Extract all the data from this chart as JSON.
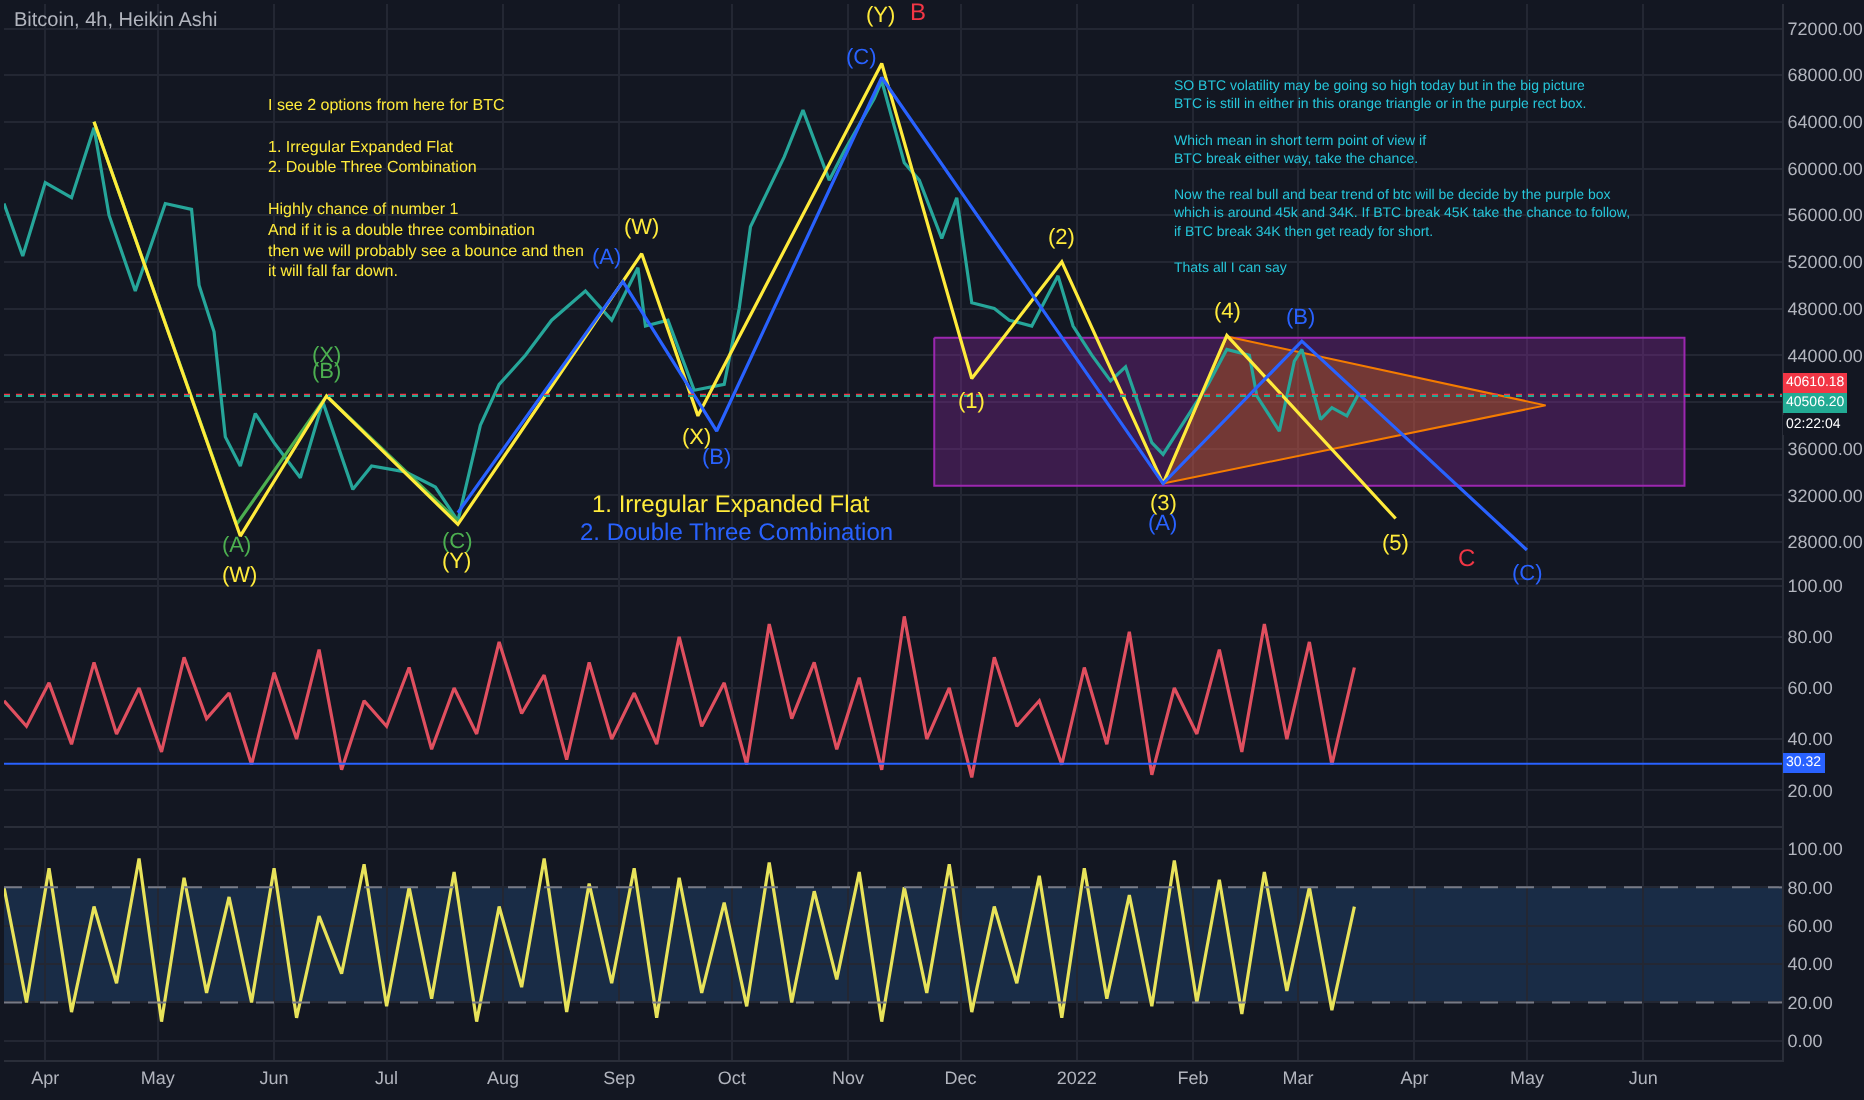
{
  "chart_data": [
    {
      "type": "line",
      "title": "Bitcoin, 4h, Heikin Ashi",
      "xlim": [
        "2021-03-21",
        "2022-07-08"
      ],
      "ylim": [
        24900,
        74100
      ],
      "yticks": [
        {
          "value": 28000,
          "label": "28000.00"
        },
        {
          "value": 32000,
          "label": "32000.00"
        },
        {
          "value": 36000,
          "label": "36000.00"
        },
        {
          "value": 40000,
          "label": null
        },
        {
          "value": 44000,
          "label": "44000.00"
        },
        {
          "value": 48000,
          "label": "48000.00"
        },
        {
          "value": 52000,
          "label": "52000.00"
        },
        {
          "value": 56000,
          "label": "56000.00"
        },
        {
          "value": 60000,
          "label": "60000.00"
        },
        {
          "value": 64000,
          "label": "64000.00"
        },
        {
          "value": 68000,
          "label": "68000.00"
        },
        {
          "value": 72000,
          "label": "72000.00"
        }
      ],
      "tick_labels": "y",
      "grid": true,
      "series": [
        {
          "type": "area",
          "color": "#9c27b0",
          "x": [
            "2021-11-24",
            "2022-06-12",
            "2022-06-12",
            "2021-11-24",
            "2021-11-24"
          ],
          "values": [
            45500,
            45500,
            32800,
            32800,
            45500
          ]
        },
        {
          "type": "area",
          "color": "#f57c00",
          "x": [
            "2022-01-24",
            "2022-02-10",
            "2022-05-06",
            "2022-01-24"
          ],
          "values": [
            33000,
            45600,
            39700,
            33000
          ]
        },
        {
          "color": "#26a69a",
          "x": [
            "2021-03-21",
            "2021-03-26",
            "2021-04-01",
            "2021-04-08",
            "2021-04-14",
            "2021-04-18",
            "2021-04-25",
            "2021-05-03",
            "2021-05-10",
            "2021-05-12",
            "2021-05-16",
            "2021-05-19",
            "2021-05-23",
            "2021-05-27",
            "2021-06-01",
            "2021-06-08",
            "2021-06-14",
            "2021-06-22",
            "2021-06-27",
            "2021-07-06",
            "2021-07-14",
            "2021-07-20",
            "2021-07-26",
            "2021-07-31",
            "2021-08-07",
            "2021-08-14",
            "2021-08-23",
            "2021-08-30",
            "2021-09-06",
            "2021-09-08",
            "2021-09-14",
            "2021-09-21",
            "2021-09-29",
            "2021-10-03",
            "2021-10-06",
            "2021-10-15",
            "2021-10-20",
            "2021-10-27",
            "2021-10-31",
            "2021-11-08",
            "2021-11-10",
            "2021-11-16",
            "2021-11-20",
            "2021-11-26",
            "2021-11-30",
            "2021-12-04",
            "2021-12-10",
            "2021-12-14",
            "2021-12-20",
            "2021-12-27",
            "2021-12-31",
            "2022-01-05",
            "2022-01-10",
            "2022-01-14",
            "2022-01-21",
            "2022-01-24",
            "2022-01-29",
            "2022-02-05",
            "2022-02-10",
            "2022-02-16",
            "2022-02-18",
            "2022-02-24",
            "2022-02-28",
            "2022-03-02",
            "2022-03-07",
            "2022-03-10",
            "2022-03-14",
            "2022-03-17"
          ],
          "values": [
            57000,
            52500,
            58800,
            57500,
            63500,
            56000,
            49500,
            57000,
            56500,
            50000,
            46000,
            37000,
            34500,
            39000,
            36500,
            33500,
            40000,
            32500,
            34500,
            34000,
            32700,
            29800,
            38000,
            41500,
            44000,
            47000,
            49500,
            47000,
            51500,
            46500,
            47000,
            41000,
            41500,
            48000,
            55000,
            61000,
            65000,
            59000,
            61500,
            66000,
            67500,
            60500,
            59000,
            54000,
            57500,
            48500,
            48000,
            47000,
            46500,
            50800,
            46500,
            44000,
            41800,
            43000,
            36500,
            35500,
            38000,
            41500,
            44500,
            44000,
            40500,
            37500,
            43500,
            44500,
            38500,
            39500,
            38800,
            40600
          ]
        },
        {
          "color": "#4caf50",
          "x": [
            "2021-04-14",
            "2021-05-22",
            "2021-06-15",
            "2021-07-20"
          ],
          "values": [
            64000,
            29500,
            40500,
            29800
          ]
        },
        {
          "color": "#ffeb3b",
          "x": [
            "2021-04-14",
            "2021-05-23",
            "2021-06-15",
            "2021-07-20",
            "2021-09-07",
            "2021-09-22",
            "2021-11-10",
            "2021-12-04",
            "2021-12-28",
            "2022-01-24",
            "2022-02-10",
            "2022-03-27"
          ],
          "values": [
            64000,
            28500,
            40500,
            29500,
            52700,
            38800,
            69000,
            42000,
            52000,
            33000,
            45700,
            30000
          ]
        },
        {
          "color": "#2962ff",
          "x": [
            "2021-07-20",
            "2021-09-02",
            "2021-09-27",
            "2021-11-10",
            "2022-01-24",
            "2022-03-02",
            "2022-05-01"
          ],
          "values": [
            30500,
            50300,
            37500,
            67800,
            33000,
            45200,
            27300
          ]
        }
      ],
      "ref_lines": [
        {
          "axis": "y",
          "value": 40610.18,
          "label": "40610.18",
          "color": "#f23645",
          "line_style": "dotted"
        },
        {
          "axis": "y",
          "value": 40506.2,
          "label": "40506.20",
          "color": "#22ab94",
          "line_style": "dotted"
        }
      ],
      "annotations": [
        "I see 2 options from here for BTC\n\n1. Irregular Expanded Flat\n2. Double Three Combination\n\nHighly chance of number 1\nAnd if it is a double three combination\nthen we will probably see a bounce and then\nit will fall far down.",
        "SO BTC volatility may be going so high today but in the big picture\nBTC is still in either in this orange triangle or in the purple rect box.\n\nWhich mean in short term point of view if\nBTC break either way, take the chance.\n\nNow the real bull and bear trend of btc will be decide by the purple box\nwhich is around 45k and 34K. If BTC break 45K take the chance to follow,\nif BTC break 34K then get ready for short.\n\nThats all I can say",
        "1. Irregular Expanded Flat",
        "2. Double Three Combination",
        "02:22:04",
        "B",
        "C",
        {
          "text": "(Y)",
          "x": "2021-11-10",
          "y": 69000
        },
        {
          "text": "(C)",
          "x": "2021-11-10",
          "y": 67800
        },
        {
          "text": "(W)",
          "x": "2021-09-07",
          "y": 52700
        },
        {
          "text": "(A)",
          "x": "2021-09-02",
          "y": 50300
        },
        {
          "text": "(X)",
          "x": "2021-09-22",
          "y": 38800
        },
        {
          "text": "(B)",
          "x": "2021-09-27",
          "y": 37500
        },
        {
          "text": "(X)",
          "x": "2021-06-15",
          "y": 40500
        },
        {
          "text": "(B)",
          "x": "2021-06-15",
          "y": 40500
        },
        {
          "text": "(A)",
          "x": "2021-05-22",
          "y": 29500
        },
        {
          "text": "(W)",
          "x": "2021-05-23",
          "y": 28500
        },
        {
          "text": "(C)",
          "x": "2021-07-20",
          "y": 29800
        },
        {
          "text": "(Y)",
          "x": "2021-07-20",
          "y": 29500
        },
        {
          "text": "(1)",
          "x": "2021-12-04",
          "y": 42000
        },
        {
          "text": "(2)",
          "x": "2021-12-28",
          "y": 52000
        },
        {
          "text": "(3)",
          "x": "2022-01-24",
          "y": 33000
        },
        {
          "text": "(A)",
          "x": "2022-01-24",
          "y": 33000
        },
        {
          "text": "(4)",
          "x": "2022-02-10",
          "y": 45700
        },
        {
          "text": "(B)",
          "x": "2022-03-02",
          "y": 45200
        },
        {
          "text": "(5)",
          "x": "2022-03-27",
          "y": 30000
        },
        {
          "text": "(C)",
          "x": "2022-05-01",
          "y": 27300
        }
      ]
    },
    {
      "type": "line",
      "xlim": [
        "2021-03-21",
        "2022-07-08"
      ],
      "ylim": [
        6,
        103
      ],
      "yticks": [
        {
          "value": 20,
          "label": "20.00"
        },
        {
          "value": 40,
          "label": "40.00"
        },
        {
          "value": 60,
          "label": "60.00"
        },
        {
          "value": 80,
          "label": "80.00"
        },
        {
          "value": 100,
          "label": "100.00"
        }
      ],
      "tick_labels": "y",
      "grid": true,
      "x": [
        "2021-03-21",
        "2021-03-27",
        "2021-04-02",
        "2021-04-08",
        "2021-04-14",
        "2021-04-20",
        "2021-04-26",
        "2021-05-02",
        "2021-05-08",
        "2021-05-14",
        "2021-05-20",
        "2021-05-26",
        "2021-06-01",
        "2021-06-07",
        "2021-06-13",
        "2021-06-19",
        "2021-06-25",
        "2021-07-01",
        "2021-07-07",
        "2021-07-13",
        "2021-07-19",
        "2021-07-25",
        "2021-07-31",
        "2021-08-06",
        "2021-08-12",
        "2021-08-18",
        "2021-08-24",
        "2021-08-30",
        "2021-09-05",
        "2021-09-11",
        "2021-09-17",
        "2021-09-23",
        "2021-09-29",
        "2021-10-05",
        "2021-10-11",
        "2021-10-17",
        "2021-10-23",
        "2021-10-29",
        "2021-11-04",
        "2021-11-10",
        "2021-11-16",
        "2021-11-22",
        "2021-11-28",
        "2021-12-04",
        "2021-12-10",
        "2021-12-16",
        "2021-12-22",
        "2021-12-28",
        "2022-01-03",
        "2022-01-09",
        "2022-01-15",
        "2022-01-21",
        "2022-01-27",
        "2022-02-02",
        "2022-02-08",
        "2022-02-14",
        "2022-02-20",
        "2022-02-26",
        "2022-03-04",
        "2022-03-10",
        "2022-03-16"
      ],
      "series": [
        {
          "color": "#e04f5f",
          "values": [
            55,
            45,
            62,
            38,
            70,
            42,
            60,
            35,
            72,
            48,
            58,
            30,
            66,
            40,
            75,
            28,
            55,
            45,
            68,
            36,
            60,
            42,
            78,
            50,
            65,
            32,
            70,
            40,
            58,
            38,
            80,
            45,
            62,
            30,
            85,
            48,
            70,
            36,
            64,
            28,
            88,
            40,
            60,
            25,
            72,
            45,
            55,
            30,
            68,
            38,
            82,
            26,
            60,
            42,
            75,
            35,
            85,
            40,
            78,
            30,
            68
          ]
        }
      ],
      "ref_lines": [
        {
          "axis": "y",
          "value": 30.32,
          "label": "30.32",
          "color": "#2962ff",
          "line_style": "solid"
        }
      ]
    },
    {
      "type": "line",
      "xlim": [
        "2021-03-21",
        "2022-07-08"
      ],
      "ylim": [
        -10,
        112
      ],
      "yticks": [
        {
          "value": 0,
          "label": "0.00"
        },
        {
          "value": 20,
          "label": "20.00"
        },
        {
          "value": 40,
          "label": "40.00"
        },
        {
          "value": 60,
          "label": "60.00"
        },
        {
          "value": 80,
          "label": "80.00"
        },
        {
          "value": 100,
          "label": "100.00"
        }
      ],
      "xticks": [
        {
          "value": "2021-04-01",
          "label": "Apr"
        },
        {
          "value": "2021-05-01",
          "label": "May"
        },
        {
          "value": "2021-06-01",
          "label": "Jun"
        },
        {
          "value": "2021-07-01",
          "label": "Jul"
        },
        {
          "value": "2021-08-01",
          "label": "Aug"
        },
        {
          "value": "2021-09-01",
          "label": "Sep"
        },
        {
          "value": "2021-10-01",
          "label": "Oct"
        },
        {
          "value": "2021-11-01",
          "label": "Nov"
        },
        {
          "value": "2021-12-01",
          "label": "Dec"
        },
        {
          "value": "2022-01-01",
          "label": "2022"
        },
        {
          "value": "2022-02-01",
          "label": "Feb"
        },
        {
          "value": "2022-03-01",
          "label": "Mar"
        },
        {
          "value": "2022-04-01",
          "label": "Apr"
        },
        {
          "value": "2022-05-01",
          "label": "May"
        },
        {
          "value": "2022-06-01",
          "label": "Jun"
        }
      ],
      "grid": true,
      "x": [
        "2021-03-21",
        "2021-03-27",
        "2021-04-02",
        "2021-04-08",
        "2021-04-14",
        "2021-04-20",
        "2021-04-26",
        "2021-05-02",
        "2021-05-08",
        "2021-05-14",
        "2021-05-20",
        "2021-05-26",
        "2021-06-01",
        "2021-06-07",
        "2021-06-13",
        "2021-06-19",
        "2021-06-25",
        "2021-07-01",
        "2021-07-07",
        "2021-07-13",
        "2021-07-19",
        "2021-07-25",
        "2021-07-31",
        "2021-08-06",
        "2021-08-12",
        "2021-08-18",
        "2021-08-24",
        "2021-08-30",
        "2021-09-05",
        "2021-09-11",
        "2021-09-17",
        "2021-09-23",
        "2021-09-29",
        "2021-10-05",
        "2021-10-11",
        "2021-10-17",
        "2021-10-23",
        "2021-10-29",
        "2021-11-04",
        "2021-11-10",
        "2021-11-16",
        "2021-11-22",
        "2021-11-28",
        "2021-12-04",
        "2021-12-10",
        "2021-12-16",
        "2021-12-22",
        "2021-12-28",
        "2022-01-03",
        "2022-01-09",
        "2022-01-15",
        "2022-01-21",
        "2022-01-27",
        "2022-02-02",
        "2022-02-08",
        "2022-02-14",
        "2022-02-20",
        "2022-02-26",
        "2022-03-04",
        "2022-03-10",
        "2022-03-16"
      ],
      "series": [
        {
          "color": "#e8e35a",
          "values": [
            80,
            20,
            90,
            15,
            70,
            30,
            95,
            10,
            85,
            25,
            75,
            20,
            90,
            12,
            65,
            35,
            92,
            18,
            80,
            22,
            88,
            10,
            70,
            28,
            95,
            15,
            82,
            30,
            90,
            12,
            85,
            25,
            72,
            18,
            93,
            20,
            78,
            32,
            88,
            10,
            80,
            25,
            92,
            15,
            70,
            30,
            86,
            12,
            90,
            22,
            76,
            18,
            94,
            20,
            84,
            14,
            88,
            26,
            80,
            16,
            70
          ]
        }
      ],
      "bands": [
        {
          "axis": "y",
          "from": 20,
          "to": 80,
          "color": "#1e3a5f"
        }
      ]
    }
  ]
}
